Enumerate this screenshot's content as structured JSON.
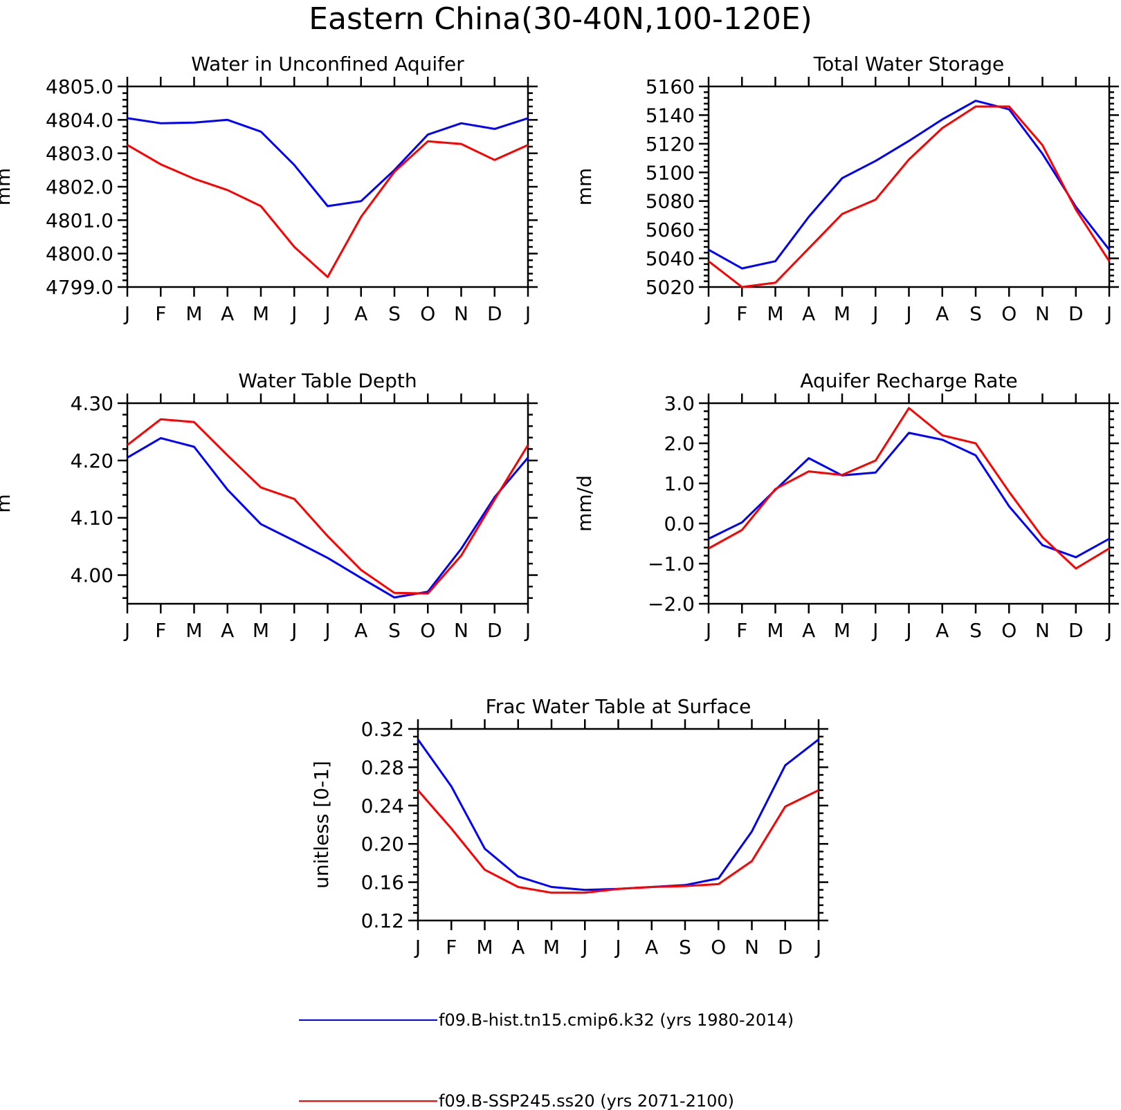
{
  "figure_title": "Eastern China(30-40N,100-120E)",
  "months": [
    "J",
    "F",
    "M",
    "A",
    "M",
    "J",
    "J",
    "A",
    "S",
    "O",
    "N",
    "D",
    "J"
  ],
  "series": [
    {
      "name": "f09.B-hist.tn15.cmip6.k32 (yrs 1980-2014)",
      "color": "#0000ff"
    },
    {
      "name": "f09.B-SSP245.ss20 (yrs 2071-2100)",
      "color": "#ff0000"
    }
  ],
  "chart_data": [
    {
      "type": "line",
      "title": "Water in Unconfined Aquifer",
      "xlabel": "",
      "ylabel": "mm",
      "ylim": [
        4799.0,
        4805.0
      ],
      "yticks": [
        4799.0,
        4800.0,
        4801.0,
        4802.0,
        4803.0,
        4804.0,
        4805.0
      ],
      "ytick_labels": [
        "4799.0",
        "4800.0",
        "4801.0",
        "4802.0",
        "4803.0",
        "4804.0",
        "4805.0"
      ],
      "x": [
        "J",
        "F",
        "M",
        "A",
        "M",
        "J",
        "J",
        "A",
        "S",
        "O",
        "N",
        "D",
        "J"
      ],
      "series": [
        {
          "name": "f09.B-hist.tn15.cmip6.k32 (yrs 1980-2014)",
          "values": [
            4804.05,
            4803.9,
            4803.92,
            4804.0,
            4803.65,
            4802.65,
            4801.42,
            4801.57,
            4802.5,
            4803.56,
            4803.9,
            4803.73,
            4804.05
          ]
        },
        {
          "name": "f09.B-SSP245.ss20 (yrs 2071-2100)",
          "values": [
            4803.25,
            4802.67,
            4802.24,
            4801.9,
            4801.42,
            4800.2,
            4799.3,
            4801.1,
            4802.45,
            4803.36,
            4803.28,
            4802.8,
            4803.25
          ]
        }
      ]
    },
    {
      "type": "line",
      "title": "Total Water Storage",
      "xlabel": "",
      "ylabel": "mm",
      "ylim": [
        5020,
        5160
      ],
      "yticks": [
        5020,
        5040,
        5060,
        5080,
        5100,
        5120,
        5140,
        5160
      ],
      "ytick_labels": [
        "5020",
        "5040",
        "5060",
        "5080",
        "5100",
        "5120",
        "5140",
        "5160"
      ],
      "x": [
        "J",
        "F",
        "M",
        "A",
        "M",
        "J",
        "J",
        "A",
        "S",
        "O",
        "N",
        "D",
        "J"
      ],
      "series": [
        {
          "name": "f09.B-hist.tn15.cmip6.k32 (yrs 1980-2014)",
          "values": [
            5046,
            5033,
            5038,
            5069,
            5096,
            5108,
            5122,
            5137,
            5150,
            5144,
            5113,
            5076,
            5046
          ]
        },
        {
          "name": "f09.B-SSP245.ss20 (yrs 2071-2100)",
          "values": [
            5038,
            5020,
            5023,
            5047,
            5071,
            5081,
            5109,
            5131,
            5146,
            5146,
            5119,
            5074,
            5038
          ]
        }
      ]
    },
    {
      "type": "line",
      "title": "Water Table Depth",
      "xlabel": "",
      "ylabel": "m",
      "ylim": [
        3.95,
        4.3
      ],
      "yticks": [
        4.0,
        4.1,
        4.2,
        4.3
      ],
      "ytick_labels": [
        "4.00",
        "4.10",
        "4.20",
        "4.30"
      ],
      "x": [
        "J",
        "F",
        "M",
        "A",
        "M",
        "J",
        "J",
        "A",
        "S",
        "O",
        "N",
        "D",
        "J"
      ],
      "series": [
        {
          "name": "f09.B-hist.tn15.cmip6.k32 (yrs 1980-2014)",
          "values": [
            4.205,
            4.239,
            4.224,
            4.149,
            4.089,
            4.06,
            4.03,
            3.995,
            3.961,
            3.971,
            4.046,
            4.136,
            4.205
          ]
        },
        {
          "name": "f09.B-SSP245.ss20 (yrs 2071-2100)",
          "values": [
            4.227,
            4.272,
            4.267,
            4.209,
            4.153,
            4.133,
            4.068,
            4.009,
            3.969,
            3.968,
            4.034,
            4.132,
            4.227
          ]
        }
      ]
    },
    {
      "type": "line",
      "title": "Aquifer Recharge Rate",
      "xlabel": "",
      "ylabel": "mm/d",
      "ylim": [
        -2.0,
        3.0
      ],
      "yticks": [
        -2.0,
        -1.0,
        0.0,
        1.0,
        2.0,
        3.0
      ],
      "ytick_labels": [
        "−2.0",
        "−1.0",
        "0.0",
        "1.0",
        "2.0",
        "3.0"
      ],
      "x": [
        "J",
        "F",
        "M",
        "A",
        "M",
        "J",
        "J",
        "A",
        "S",
        "O",
        "N",
        "D",
        "J"
      ],
      "series": [
        {
          "name": "f09.B-hist.tn15.cmip6.k32 (yrs 1980-2014)",
          "values": [
            -0.38,
            0.03,
            0.84,
            1.63,
            1.2,
            1.27,
            2.26,
            2.09,
            1.7,
            0.43,
            -0.54,
            -0.84,
            -0.38
          ]
        },
        {
          "name": "f09.B-SSP245.ss20 (yrs 2071-2100)",
          "values": [
            -0.62,
            -0.16,
            0.86,
            1.3,
            1.21,
            1.57,
            2.88,
            2.2,
            2.0,
            0.79,
            -0.34,
            -1.12,
            -0.62
          ]
        }
      ]
    },
    {
      "type": "line",
      "title": "Frac Water Table at Surface",
      "xlabel": "",
      "ylabel": "unitless [0-1]",
      "ylim": [
        0.12,
        0.32
      ],
      "yticks": [
        0.12,
        0.16,
        0.2,
        0.24,
        0.28,
        0.32
      ],
      "ytick_labels": [
        "0.12",
        "0.16",
        "0.20",
        "0.24",
        "0.28",
        "0.32"
      ],
      "x": [
        "J",
        "F",
        "M",
        "A",
        "M",
        "J",
        "J",
        "A",
        "S",
        "O",
        "N",
        "D",
        "J"
      ],
      "series": [
        {
          "name": "f09.B-hist.tn15.cmip6.k32 (yrs 1980-2014)",
          "values": [
            0.309,
            0.26,
            0.195,
            0.166,
            0.155,
            0.152,
            0.153,
            0.155,
            0.157,
            0.164,
            0.213,
            0.282,
            0.309
          ]
        },
        {
          "name": "f09.B-SSP245.ss20 (yrs 2071-2100)",
          "values": [
            0.256,
            0.216,
            0.173,
            0.155,
            0.149,
            0.149,
            0.153,
            0.155,
            0.156,
            0.158,
            0.182,
            0.239,
            0.256
          ]
        }
      ]
    }
  ]
}
